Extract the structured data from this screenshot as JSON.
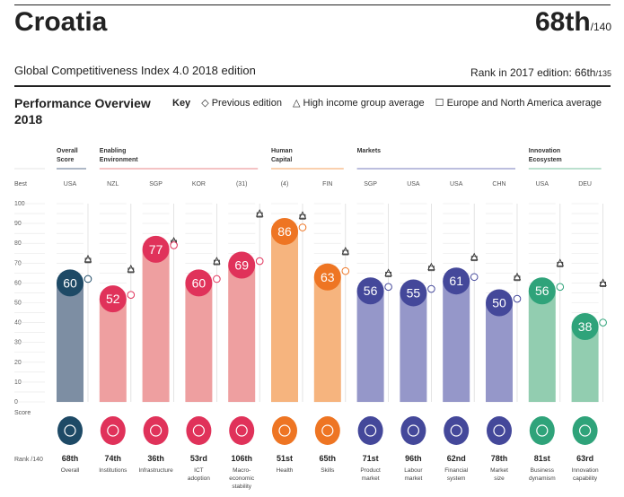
{
  "header": {
    "country": "Croatia",
    "rank": "68th",
    "rank_total": "/140",
    "edition": "Global Competitiveness Index 4.0 2018 edition",
    "prev_rank_label": "Rank in 2017 edition: 66th",
    "prev_rank_total": "/135"
  },
  "section_title": "Performance Overview 2018",
  "key": {
    "label": "Key",
    "previous": "Previous edition",
    "high_income": "High income group average",
    "europe": "Europe and North America average"
  },
  "row_labels": {
    "best": "Best",
    "score": "Score",
    "rank": "Rank /140"
  },
  "colors": {
    "overall": "#1e4a66",
    "enabling": "#e0325a",
    "human": "#ee7523",
    "markets": "#44489a",
    "innovation": "#2fa37a"
  },
  "chart_data": {
    "type": "bar",
    "ylim": [
      0,
      100
    ],
    "yticks": [
      0,
      10,
      20,
      30,
      40,
      50,
      60,
      70,
      80,
      90,
      100
    ],
    "groups": [
      {
        "name": "Overall Score",
        "key": "overall",
        "count": 1
      },
      {
        "name": "Enabling Environment",
        "key": "enabling",
        "count": 4
      },
      {
        "name": "Human Capital",
        "key": "human",
        "count": 2
      },
      {
        "name": "Markets",
        "key": "markets",
        "count": 4
      },
      {
        "name": "Innovation Ecosystem",
        "key": "innovation",
        "count": 2
      }
    ],
    "pillars": [
      {
        "label": "Overall",
        "group": "overall",
        "best": "USA",
        "score": 60,
        "rank": "68th",
        "previous": 62,
        "high_income": 72,
        "icon": "medal-icon"
      },
      {
        "label": "Institutions",
        "group": "enabling",
        "best": "NZL",
        "score": 52,
        "rank": "74th",
        "previous": 54,
        "high_income": 67,
        "icon": "building-icon"
      },
      {
        "label": "Infrastructure",
        "group": "enabling",
        "best": "SGP",
        "score": 77,
        "rank": "36th",
        "previous": 79,
        "high_income": 81,
        "icon": "train-icon"
      },
      {
        "label": "ICT adoption",
        "group": "enabling",
        "best": "KOR",
        "score": 60,
        "rank": "53rd",
        "previous": 62,
        "high_income": 71,
        "icon": "chip-icon"
      },
      {
        "label": "Macro-economic stability",
        "group": "enabling",
        "best": "(31)",
        "score": 69,
        "rank": "106th",
        "previous": 71,
        "high_income": 95,
        "icon": "percent-icon"
      },
      {
        "label": "Health",
        "group": "human",
        "best": "(4)",
        "score": 86,
        "rank": "51st",
        "previous": 88,
        "high_income": 94,
        "icon": "heart-icon"
      },
      {
        "label": "Skills",
        "group": "human",
        "best": "FIN",
        "score": 63,
        "rank": "65th",
        "previous": 66,
        "high_income": 76,
        "icon": "graduate-icon"
      },
      {
        "label": "Product market",
        "group": "markets",
        "best": "SGP",
        "score": 56,
        "rank": "71st",
        "previous": 58,
        "high_income": 65,
        "icon": "tag-icon"
      },
      {
        "label": "Labour market",
        "group": "markets",
        "best": "USA",
        "score": 55,
        "rank": "96th",
        "previous": 57,
        "high_income": 68,
        "icon": "people-icon"
      },
      {
        "label": "Financial system",
        "group": "markets",
        "best": "USA",
        "score": 61,
        "rank": "62nd",
        "previous": 63,
        "high_income": 73,
        "icon": "card-icon"
      },
      {
        "label": "Market size",
        "group": "markets",
        "best": "CHN",
        "score": 50,
        "rank": "78th",
        "previous": 52,
        "high_income": 63,
        "icon": "expand-icon"
      },
      {
        "label": "Business dynamism",
        "group": "innovation",
        "best": "USA",
        "score": 56,
        "rank": "81st",
        "previous": 58,
        "high_income": 70,
        "icon": "office-icon"
      },
      {
        "label": "Innovation capability",
        "group": "innovation",
        "best": "DEU",
        "score": 38,
        "rank": "63rd",
        "previous": 40,
        "high_income": 60,
        "icon": "bulb-icon"
      }
    ]
  }
}
